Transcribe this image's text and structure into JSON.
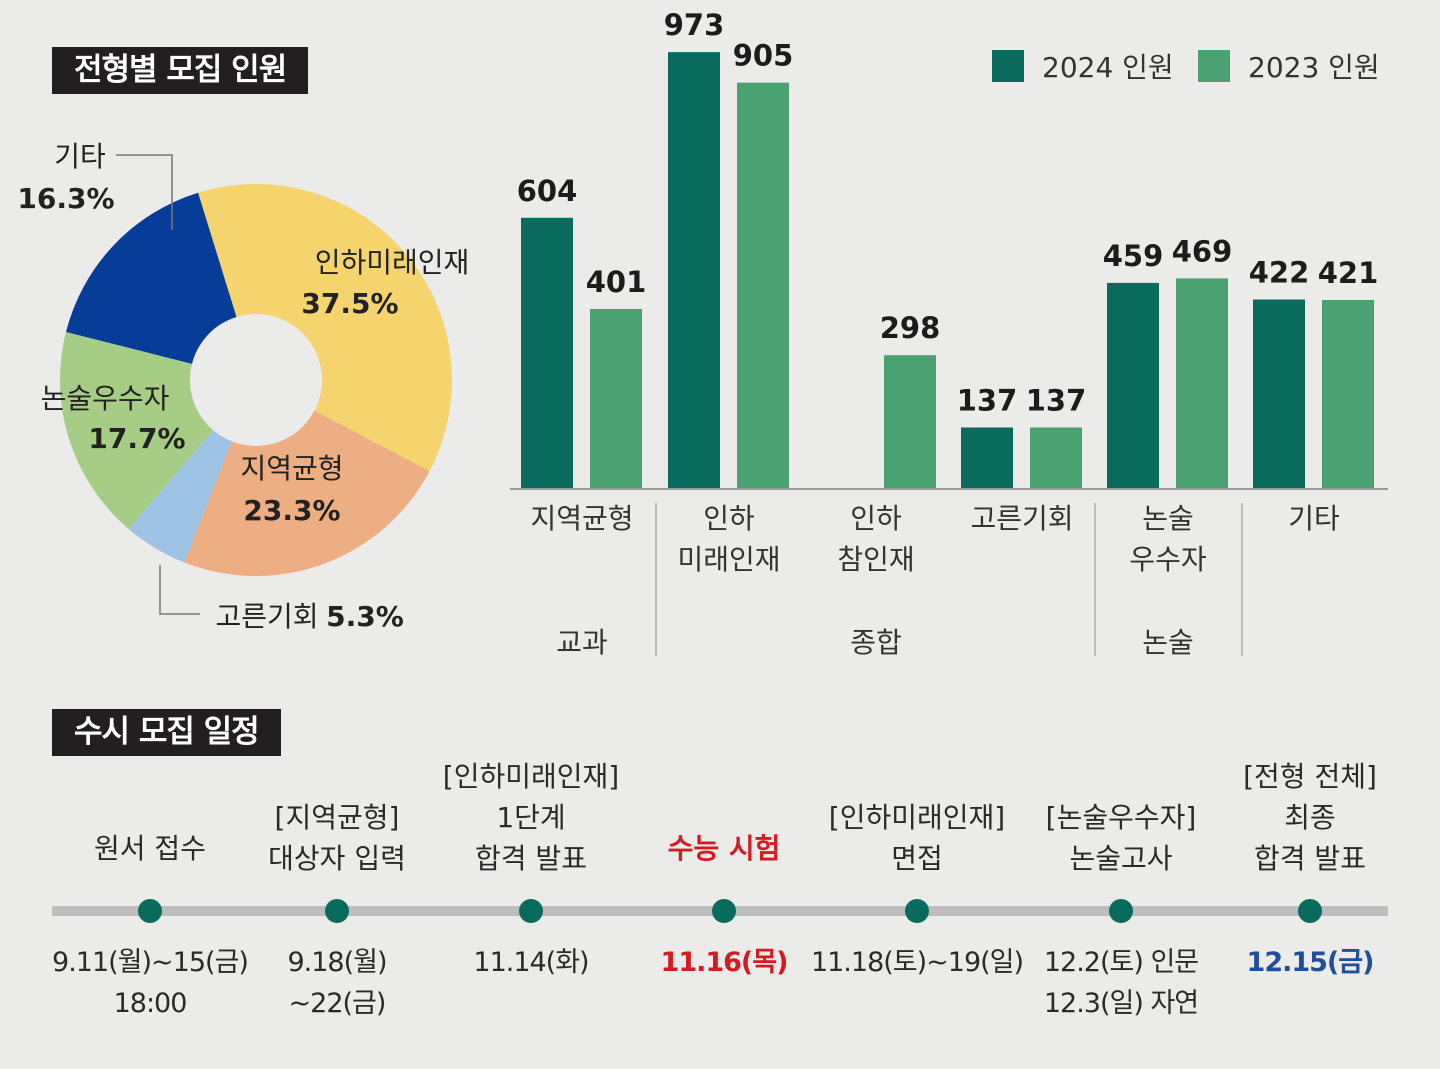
{
  "section1": {
    "title": "전형별 모집 인원"
  },
  "section2": {
    "title": "수시 모집 일정"
  },
  "colors": {
    "bar2024": "#0b6a5e",
    "bar2023": "#4aa270",
    "highlight_red": "#d71920",
    "highlight_blue": "#1f4e9c",
    "timeline_dot": "#0b6a5e",
    "title_bg": "#231f20"
  },
  "chart_data": [
    {
      "type": "pie",
      "title": "전형별 모집 인원",
      "slices": [
        {
          "label": "인하미래인재",
          "value": 37.5,
          "display": "37.5%",
          "color": "#f5d46e"
        },
        {
          "label": "지역균형",
          "value": 23.3,
          "display": "23.3%",
          "color": "#edae83"
        },
        {
          "label": "고른기회",
          "value": 5.3,
          "display": "5.3%",
          "color": "#9fc3e5"
        },
        {
          "label": "논술우수자",
          "value": 17.7,
          "display": "17.7%",
          "color": "#a6cd86"
        },
        {
          "label": "기타",
          "value": 16.3,
          "display": "16.3%",
          "color": "#083c99"
        }
      ]
    },
    {
      "type": "bar",
      "series": [
        {
          "name": "2024 인원",
          "values": [
            604,
            973,
            null,
            137,
            459,
            422
          ]
        },
        {
          "name": "2023 인원",
          "values": [
            401,
            905,
            298,
            137,
            469,
            421
          ]
        }
      ],
      "categories": [
        {
          "lines": [
            "지역균형"
          ]
        },
        {
          "lines": [
            "인하",
            "미래인재"
          ]
        },
        {
          "lines": [
            "인하",
            "참인재"
          ]
        },
        {
          "lines": [
            "고른기회"
          ]
        },
        {
          "lines": [
            "논술",
            "우수자"
          ]
        },
        {
          "lines": [
            "기타"
          ]
        }
      ],
      "groups": [
        {
          "label": "교과",
          "categories": [
            0
          ]
        },
        {
          "label": "종합",
          "categories": [
            1,
            2,
            3
          ]
        },
        {
          "label": "논술",
          "categories": [
            4
          ]
        }
      ],
      "ylim": [
        0,
        1000
      ],
      "legend": "top-right"
    }
  ],
  "timeline": [
    {
      "event_lines": [
        "원서 접수"
      ],
      "date_lines": [
        "9.11(월)~15(금)",
        "18:00"
      ],
      "highlight": ""
    },
    {
      "event_lines": [
        "[지역균형]",
        "대상자 입력"
      ],
      "date_lines": [
        "9.18(월)",
        "~22(금)"
      ],
      "highlight": ""
    },
    {
      "event_lines": [
        "[인하미래인재]",
        "1단계",
        "합격 발표"
      ],
      "date_lines": [
        "11.14(화)"
      ],
      "highlight": ""
    },
    {
      "event_lines": [
        "수능 시험"
      ],
      "date_lines": [
        "11.16(목)"
      ],
      "highlight": "red"
    },
    {
      "event_lines": [
        "[인하미래인재]",
        "면접"
      ],
      "date_lines": [
        "11.18(토)~19(일)"
      ],
      "highlight": ""
    },
    {
      "event_lines": [
        "[논술우수자]",
        "논술고사"
      ],
      "date_lines": [
        "12.2(토) 인문",
        "12.3(일) 자연"
      ],
      "highlight": ""
    },
    {
      "event_lines": [
        "[전형 전체]",
        "최종",
        "합격 발표"
      ],
      "date_lines": [
        "12.15(금)"
      ],
      "highlight": "blue"
    }
  ]
}
